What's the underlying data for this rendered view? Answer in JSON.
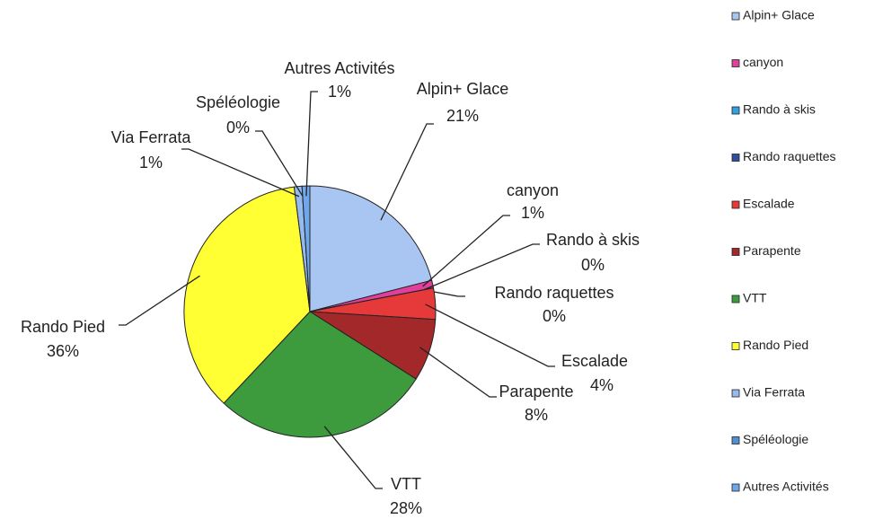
{
  "chart_data": {
    "type": "pie",
    "categories": [
      "Alpin+ Glace",
      "canyon",
      "Rando à skis",
      "Rando raquettes",
      "Escalade",
      "Parapente",
      "VTT",
      "Rando Pied",
      "Via Ferrata",
      "Spéléologie",
      "Autres Activités"
    ],
    "values": [
      21,
      1,
      0,
      0,
      4,
      8,
      28,
      36,
      1,
      0,
      1
    ],
    "value_labels": [
      "21%",
      "1%",
      "0%",
      "0%",
      "4%",
      "8%",
      "28%",
      "36%",
      "1%",
      "0%",
      "1%"
    ],
    "colors": [
      "#a9c6f2",
      "#e0409c",
      "#2ea2e2",
      "#2f4f9e",
      "#e63a3a",
      "#a3282a",
      "#3d9a3d",
      "#ffff33",
      "#94baf0",
      "#4f90d2",
      "#6fa8ea"
    ],
    "legend": "right"
  }
}
